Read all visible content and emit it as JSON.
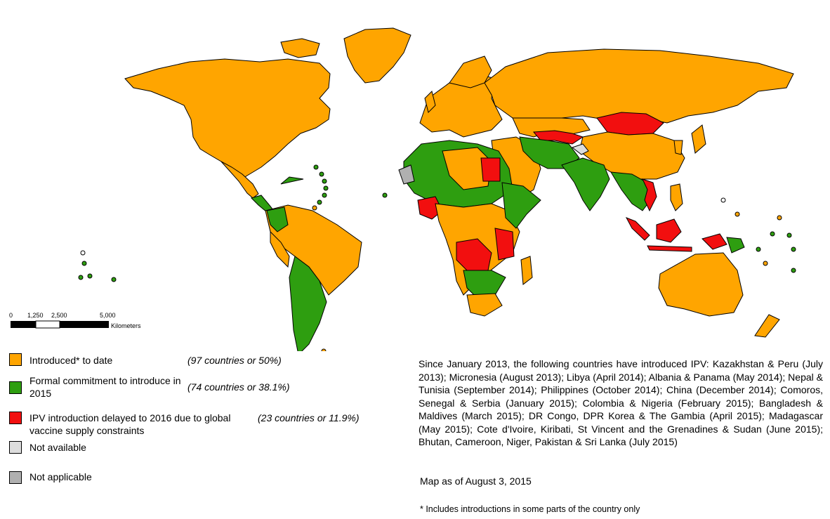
{
  "colors": {
    "introduced": "#FFA500",
    "formal_commitment": "#2E9E10",
    "delayed": "#F20F0F",
    "not_available": "#DDDDDD",
    "not_applicable": "#B0B0B0"
  },
  "scale_bar": {
    "ticks": [
      "0",
      "1,250",
      "2,500",
      "5,000"
    ],
    "unit": "Kilometers"
  },
  "legend": [
    {
      "label": "Introduced* to date",
      "count": "(97 countries or 50%)",
      "color_key": "introduced"
    },
    {
      "label": "Formal commitment to introduce in 2015",
      "count": "(74 countries or 38.1%)",
      "color_key": "formal_commitment"
    },
    {
      "label": "IPV introduction delayed to 2016 due to global vaccine supply constraints",
      "count": "(23 countries or 11.9%)",
      "color_key": "delayed"
    },
    {
      "label": "Not available",
      "count": "",
      "color_key": "not_available"
    },
    {
      "label": "Not applicable",
      "count": "",
      "color_key": "not_applicable"
    }
  ],
  "info_text": "Since January 2013, the following countries have introduced IPV: Kazakhstan & Peru (July 2013); Micronesia (August 2013); Libya (April 2014); Albania & Panama (May 2014); Nepal & Tunisia (September 2014);  Philippines (October 2014); China (December 2014); Comoros, Senegal & Serbia (January 2015); Colombia & Nigeria (February 2015); Bangladesh & Maldives (March 2015); DR Congo, DPR Korea & The Gambia (April 2015); Madagascar (May 2015); Cote d'Ivoire, Kiribati, St Vincent and the Grenadines & Sudan (June 2015); Bhutan, Cameroon, Niger, Pakistan & Sri Lanka (July 2015)",
  "as_of": "Map as of August 3, 2015",
  "footnote": "* Includes introductions in some parts of the country only"
}
